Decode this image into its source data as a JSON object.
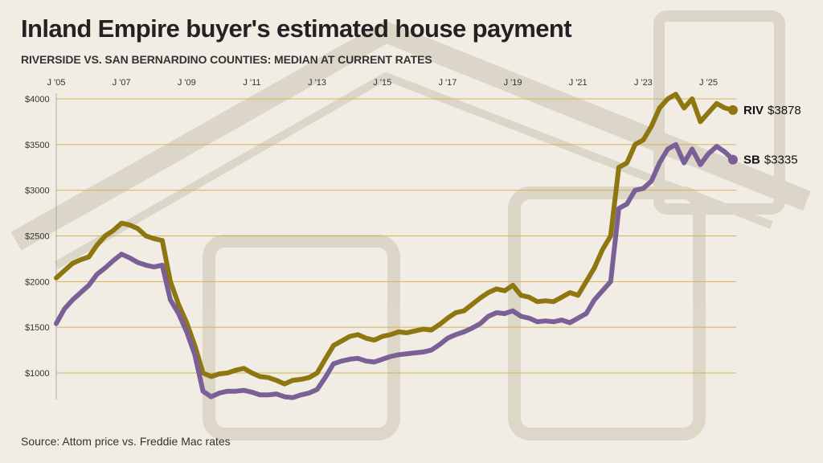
{
  "title": "Inland Empire buyer's estimated house payment",
  "subtitle": "RIVERSIDE VS. SAN BERNARDINO COUNTIES: MEDIAN AT CURRENT RATES",
  "source": "Source: Attom price vs. Freddie Mac rates",
  "colors": {
    "background": "#f1ede4",
    "riverside": "#8e7611",
    "san_bernardino": "#7b5f97",
    "gridline": "#d7b157",
    "house_watermark": "#d8d2c2"
  },
  "chart_data": {
    "type": "line",
    "title": "Inland Empire buyer's estimated house payment",
    "subtitle": "RIVERSIDE VS. SAN BERNARDINO COUNTIES: MEDIAN AT CURRENT RATES",
    "xlabel": "",
    "ylabel": "",
    "x_ticks": [
      {
        "label": "J '05",
        "year": 2005
      },
      {
        "label": "J '07",
        "year": 2007
      },
      {
        "label": "J '09",
        "year": 2009
      },
      {
        "label": "J '11",
        "year": 2011
      },
      {
        "label": "J '13",
        "year": 2013
      },
      {
        "label": "J '15",
        "year": 2015
      },
      {
        "label": "J '17",
        "year": 2017
      },
      {
        "label": "J '19",
        "year": 2019
      },
      {
        "label": "J '21",
        "year": 2021
      },
      {
        "label": "J '23",
        "year": 2023
      },
      {
        "label": "J '25",
        "year": 2025
      }
    ],
    "y_ticks": [
      {
        "label": "$4000",
        "value": 4000
      },
      {
        "label": "$3500",
        "value": 3500
      },
      {
        "label": "$3000",
        "value": 3000
      },
      {
        "label": "$2500",
        "value": 2500
      },
      {
        "label": "$2000",
        "value": 2000
      },
      {
        "label": "$1500",
        "value": 1500
      },
      {
        "label": "$1000",
        "value": 1000
      }
    ],
    "xlim": [
      2005,
      2025.85
    ],
    "ylim": [
      700,
      4050
    ],
    "grid": "horizontal",
    "legend": "direct labels at line ends",
    "series": [
      {
        "name": "RIV",
        "end_label": "RIV",
        "end_value": "$3878",
        "color": "#8e7611",
        "points": [
          [
            2005.0,
            2040
          ],
          [
            2005.25,
            2120
          ],
          [
            2005.5,
            2200
          ],
          [
            2005.75,
            2240
          ],
          [
            2006.0,
            2270
          ],
          [
            2006.25,
            2400
          ],
          [
            2006.5,
            2500
          ],
          [
            2006.75,
            2560
          ],
          [
            2007.0,
            2640
          ],
          [
            2007.25,
            2620
          ],
          [
            2007.5,
            2580
          ],
          [
            2007.75,
            2500
          ],
          [
            2008.0,
            2470
          ],
          [
            2008.25,
            2450
          ],
          [
            2008.5,
            2000
          ],
          [
            2008.75,
            1750
          ],
          [
            2009.0,
            1550
          ],
          [
            2009.25,
            1300
          ],
          [
            2009.5,
            1000
          ],
          [
            2009.75,
            960
          ],
          [
            2010.0,
            990
          ],
          [
            2010.25,
            1000
          ],
          [
            2010.5,
            1030
          ],
          [
            2010.75,
            1050
          ],
          [
            2011.0,
            1000
          ],
          [
            2011.25,
            960
          ],
          [
            2011.5,
            950
          ],
          [
            2011.75,
            920
          ],
          [
            2012.0,
            880
          ],
          [
            2012.25,
            920
          ],
          [
            2012.5,
            930
          ],
          [
            2012.75,
            950
          ],
          [
            2013.0,
            1000
          ],
          [
            2013.25,
            1150
          ],
          [
            2013.5,
            1300
          ],
          [
            2013.75,
            1350
          ],
          [
            2014.0,
            1400
          ],
          [
            2014.25,
            1420
          ],
          [
            2014.5,
            1380
          ],
          [
            2014.75,
            1360
          ],
          [
            2015.0,
            1400
          ],
          [
            2015.25,
            1420
          ],
          [
            2015.5,
            1450
          ],
          [
            2015.75,
            1440
          ],
          [
            2016.0,
            1460
          ],
          [
            2016.25,
            1480
          ],
          [
            2016.5,
            1470
          ],
          [
            2016.75,
            1530
          ],
          [
            2017.0,
            1600
          ],
          [
            2017.25,
            1660
          ],
          [
            2017.5,
            1680
          ],
          [
            2017.75,
            1750
          ],
          [
            2018.0,
            1820
          ],
          [
            2018.25,
            1880
          ],
          [
            2018.5,
            1920
          ],
          [
            2018.75,
            1900
          ],
          [
            2019.0,
            1960
          ],
          [
            2019.25,
            1850
          ],
          [
            2019.5,
            1830
          ],
          [
            2019.75,
            1780
          ],
          [
            2020.0,
            1790
          ],
          [
            2020.25,
            1780
          ],
          [
            2020.5,
            1830
          ],
          [
            2020.75,
            1880
          ],
          [
            2021.0,
            1850
          ],
          [
            2021.25,
            2000
          ],
          [
            2021.5,
            2150
          ],
          [
            2021.75,
            2350
          ],
          [
            2022.0,
            2500
          ],
          [
            2022.25,
            3250
          ],
          [
            2022.5,
            3300
          ],
          [
            2022.75,
            3500
          ],
          [
            2023.0,
            3550
          ],
          [
            2023.25,
            3700
          ],
          [
            2023.5,
            3900
          ],
          [
            2023.75,
            4000
          ],
          [
            2024.0,
            4050
          ],
          [
            2024.25,
            3900
          ],
          [
            2024.5,
            4000
          ],
          [
            2024.75,
            3750
          ],
          [
            2025.0,
            3850
          ],
          [
            2025.25,
            3950
          ],
          [
            2025.5,
            3900
          ],
          [
            2025.75,
            3878
          ]
        ]
      },
      {
        "name": "SB",
        "end_label": "SB",
        "end_value": "$3335",
        "color": "#7b5f97",
        "points": [
          [
            2005.0,
            1540
          ],
          [
            2005.25,
            1700
          ],
          [
            2005.5,
            1800
          ],
          [
            2005.75,
            1880
          ],
          [
            2006.0,
            1960
          ],
          [
            2006.25,
            2080
          ],
          [
            2006.5,
            2150
          ],
          [
            2006.75,
            2230
          ],
          [
            2007.0,
            2300
          ],
          [
            2007.25,
            2260
          ],
          [
            2007.5,
            2210
          ],
          [
            2007.75,
            2180
          ],
          [
            2008.0,
            2160
          ],
          [
            2008.25,
            2180
          ],
          [
            2008.5,
            1800
          ],
          [
            2008.75,
            1650
          ],
          [
            2009.0,
            1450
          ],
          [
            2009.25,
            1200
          ],
          [
            2009.5,
            800
          ],
          [
            2009.75,
            740
          ],
          [
            2010.0,
            780
          ],
          [
            2010.25,
            800
          ],
          [
            2010.5,
            800
          ],
          [
            2010.75,
            810
          ],
          [
            2011.0,
            790
          ],
          [
            2011.25,
            760
          ],
          [
            2011.5,
            760
          ],
          [
            2011.75,
            770
          ],
          [
            2012.0,
            740
          ],
          [
            2012.25,
            730
          ],
          [
            2012.5,
            760
          ],
          [
            2012.75,
            780
          ],
          [
            2013.0,
            820
          ],
          [
            2013.25,
            950
          ],
          [
            2013.5,
            1100
          ],
          [
            2013.75,
            1130
          ],
          [
            2014.0,
            1150
          ],
          [
            2014.25,
            1160
          ],
          [
            2014.5,
            1130
          ],
          [
            2014.75,
            1120
          ],
          [
            2015.0,
            1150
          ],
          [
            2015.25,
            1180
          ],
          [
            2015.5,
            1200
          ],
          [
            2015.75,
            1210
          ],
          [
            2016.0,
            1220
          ],
          [
            2016.25,
            1230
          ],
          [
            2016.5,
            1250
          ],
          [
            2016.75,
            1310
          ],
          [
            2017.0,
            1380
          ],
          [
            2017.25,
            1420
          ],
          [
            2017.5,
            1450
          ],
          [
            2017.75,
            1490
          ],
          [
            2018.0,
            1540
          ],
          [
            2018.25,
            1620
          ],
          [
            2018.5,
            1660
          ],
          [
            2018.75,
            1650
          ],
          [
            2019.0,
            1680
          ],
          [
            2019.25,
            1620
          ],
          [
            2019.5,
            1600
          ],
          [
            2019.75,
            1560
          ],
          [
            2020.0,
            1570
          ],
          [
            2020.25,
            1560
          ],
          [
            2020.5,
            1580
          ],
          [
            2020.75,
            1550
          ],
          [
            2021.0,
            1600
          ],
          [
            2021.25,
            1650
          ],
          [
            2021.5,
            1800
          ],
          [
            2021.75,
            1900
          ],
          [
            2022.0,
            2000
          ],
          [
            2022.25,
            2800
          ],
          [
            2022.5,
            2850
          ],
          [
            2022.75,
            3000
          ],
          [
            2023.0,
            3020
          ],
          [
            2023.25,
            3100
          ],
          [
            2023.5,
            3300
          ],
          [
            2023.75,
            3450
          ],
          [
            2024.0,
            3500
          ],
          [
            2024.25,
            3300
          ],
          [
            2024.5,
            3450
          ],
          [
            2024.75,
            3280
          ],
          [
            2025.0,
            3400
          ],
          [
            2025.25,
            3480
          ],
          [
            2025.5,
            3420
          ],
          [
            2025.75,
            3335
          ]
        ]
      }
    ]
  }
}
